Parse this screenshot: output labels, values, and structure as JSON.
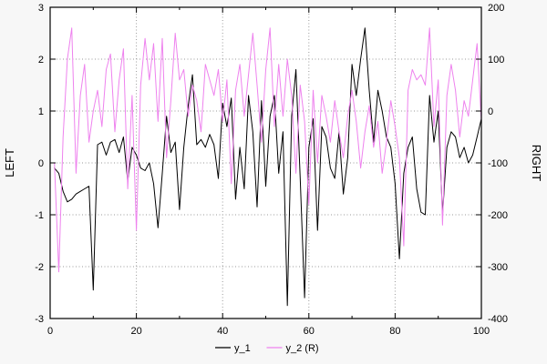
{
  "figure": {
    "background": "#f7f7f7",
    "plot_background": "#ffffff",
    "grid_color": "#9a9a9a",
    "border_color": "#000000",
    "tick_font_px": 11,
    "axis_title_font_px": 13
  },
  "left_axis": {
    "label": "LEFT",
    "min": -3,
    "max": 3,
    "ticks": [
      -3,
      -2,
      -1,
      0,
      1,
      2,
      3
    ]
  },
  "right_axis": {
    "label": "RIGHT",
    "min": -400,
    "max": 200,
    "ticks": [
      -400,
      -300,
      -200,
      -100,
      0,
      100,
      200
    ]
  },
  "x_axis": {
    "min": 0,
    "max": 100,
    "ticks": [
      0,
      20,
      40,
      60,
      80,
      100
    ],
    "minor_ticks": [
      10,
      30,
      50,
      70,
      90
    ]
  },
  "legend": [
    {
      "label": "y_1",
      "color": "#000000"
    },
    {
      "label": "y_2 (R)",
      "color": "#ee82ee"
    }
  ],
  "chart_data": {
    "type": "line",
    "title": "",
    "xlabel": "",
    "ylabel_left": "LEFT",
    "ylabel_right": "RIGHT",
    "xlim": [
      0,
      100
    ],
    "ylim_left": [
      -3,
      3
    ],
    "ylim_right": [
      -400,
      200
    ],
    "grid": true,
    "grid_style": "dotted",
    "legend_position": "bottom-center",
    "x": [
      1,
      2,
      3,
      4,
      5,
      6,
      7,
      8,
      9,
      10,
      11,
      12,
      13,
      14,
      15,
      16,
      17,
      18,
      19,
      20,
      21,
      22,
      23,
      24,
      25,
      26,
      27,
      28,
      29,
      30,
      31,
      32,
      33,
      34,
      35,
      36,
      37,
      38,
      39,
      40,
      41,
      42,
      43,
      44,
      45,
      46,
      47,
      48,
      49,
      50,
      51,
      52,
      53,
      54,
      55,
      56,
      57,
      58,
      59,
      60,
      61,
      62,
      63,
      64,
      65,
      66,
      67,
      68,
      69,
      70,
      71,
      72,
      73,
      74,
      75,
      76,
      77,
      78,
      79,
      80,
      81,
      82,
      83,
      84,
      85,
      86,
      87,
      88,
      89,
      90,
      91,
      92,
      93,
      94,
      95,
      96,
      97,
      98,
      99,
      100
    ],
    "series": [
      {
        "name": "y_1",
        "axis": "left",
        "color": "#000000",
        "values": [
          -0.1,
          -0.2,
          -0.55,
          -0.75,
          -0.7,
          -0.6,
          -0.55,
          -0.5,
          -0.45,
          -2.45,
          0.35,
          0.4,
          0.15,
          0.4,
          0.45,
          0.2,
          0.5,
          -0.35,
          0.3,
          0.15,
          -0.1,
          -0.15,
          0.0,
          -0.4,
          -1.25,
          -0.2,
          0.9,
          0.2,
          0.4,
          -0.9,
          0.3,
          1.1,
          1.7,
          0.35,
          0.45,
          0.3,
          0.55,
          0.35,
          -0.3,
          1.15,
          0.7,
          1.25,
          -0.7,
          0.3,
          -0.5,
          1.3,
          0.6,
          -0.85,
          1.2,
          -0.45,
          0.9,
          1.3,
          -0.2,
          0.6,
          -2.75,
          0.9,
          1.8,
          -0.3,
          -2.6,
          0.3,
          0.85,
          -1.3,
          0.7,
          0.5,
          -0.1,
          -0.3,
          0.6,
          -0.6,
          0.1,
          1.9,
          1.3,
          2.0,
          2.6,
          1.4,
          0.4,
          1.4,
          1.0,
          0.5,
          0.3,
          -0.4,
          -1.85,
          -0.2,
          0.3,
          0.5,
          -0.5,
          -0.95,
          -1.0,
          1.3,
          0.4,
          1.0,
          -1.0,
          0.3,
          0.6,
          0.5,
          0.1,
          0.3,
          0.0,
          0.15,
          0.5,
          0.85
        ]
      },
      {
        "name": "y_2 (R)",
        "axis": "right",
        "color": "#ee82ee",
        "values": [
          -100,
          -310,
          -50,
          100,
          160,
          -120,
          30,
          90,
          -60,
          0,
          40,
          -30,
          80,
          110,
          -40,
          60,
          120,
          -150,
          30,
          -230,
          50,
          140,
          60,
          130,
          -20,
          140,
          -90,
          20,
          150,
          60,
          80,
          -10,
          50,
          20,
          -40,
          90,
          60,
          30,
          80,
          -20,
          60,
          -140,
          40,
          90,
          -10,
          70,
          150,
          50,
          -60,
          80,
          160,
          -30,
          90,
          -10,
          100,
          30,
          -120,
          50,
          -20,
          -180,
          40,
          -100,
          30,
          -10,
          -60,
          20,
          -40,
          -90,
          -10,
          40,
          -20,
          -110,
          -40,
          10,
          -70,
          -20,
          -120,
          -60,
          20,
          -30,
          -90,
          -260,
          40,
          80,
          60,
          70,
          50,
          160,
          -30,
          60,
          -220,
          30,
          90,
          40,
          -50,
          20,
          -10,
          60,
          130,
          -20
        ]
      }
    ]
  }
}
